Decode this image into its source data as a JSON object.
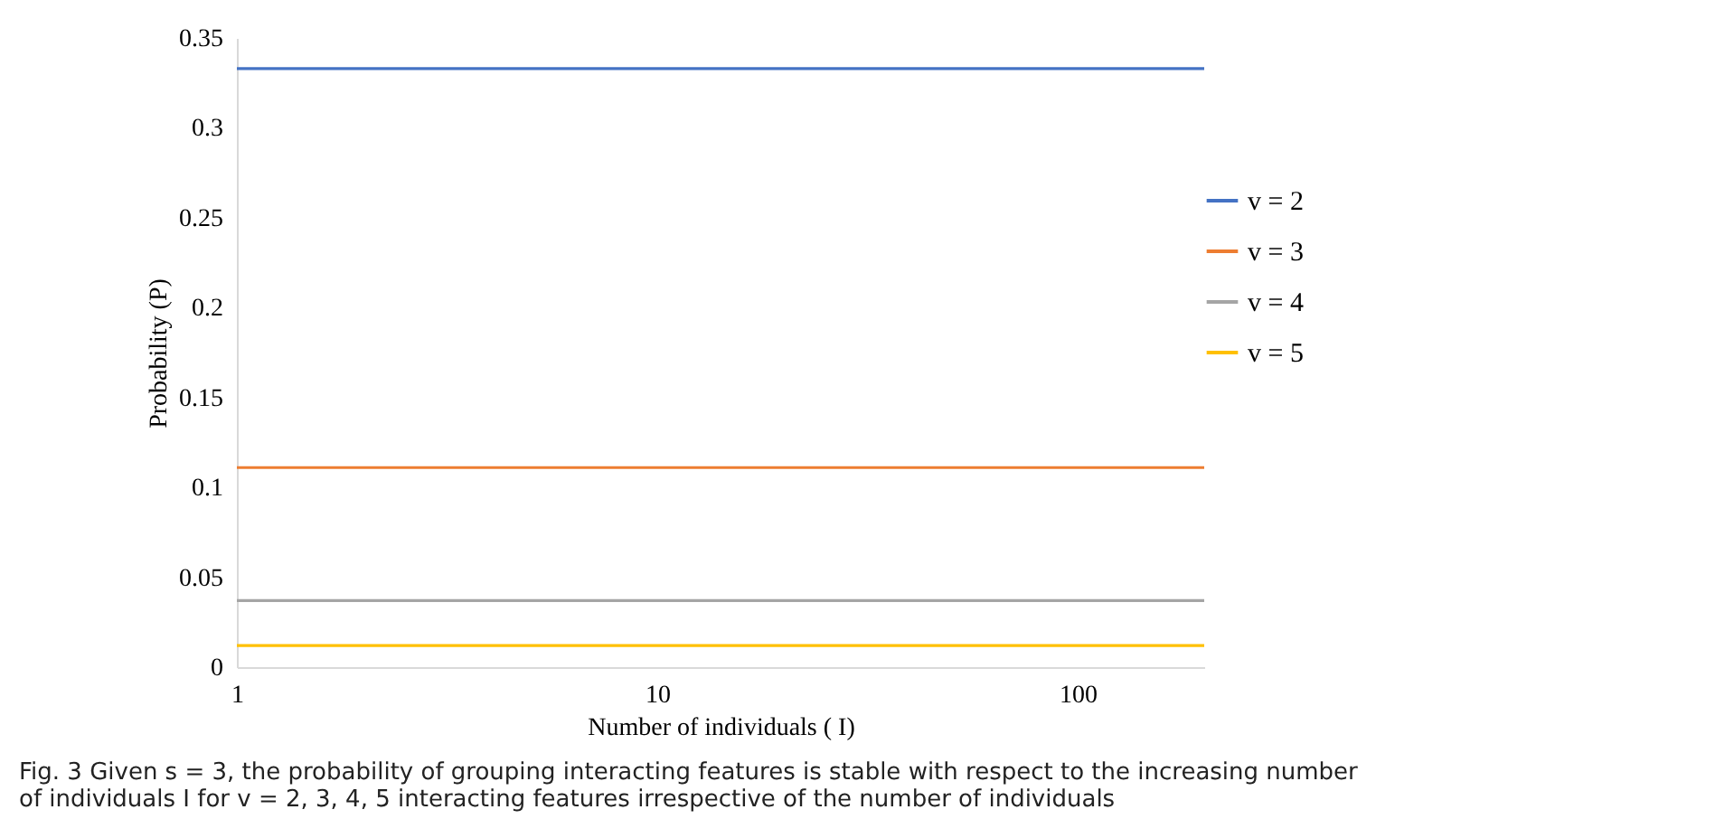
{
  "chart_data": {
    "type": "line",
    "xlabel": "Number of individuals ( I)",
    "ylabel": "Probability (P)",
    "x": [
      1,
      200
    ],
    "xlim": [
      1,
      200
    ],
    "xticks": [
      1,
      10,
      100
    ],
    "log": "x",
    "ylim": [
      0,
      0.35
    ],
    "yticks": [
      0,
      0.05,
      0.1,
      0.15,
      0.2,
      0.25,
      0.3,
      0.35
    ],
    "series": [
      {
        "name": "v = 2",
        "color": "#4472c4",
        "values": [
          0.333,
          0.333
        ]
      },
      {
        "name": "v = 3",
        "color": "#ed7d31",
        "values": [
          0.111,
          0.111
        ]
      },
      {
        "name": "v = 4",
        "color": "#a5a5a5",
        "values": [
          0.037,
          0.037
        ]
      },
      {
        "name": "v = 5",
        "color": "#ffc000",
        "values": [
          0.012,
          0.012
        ]
      }
    ],
    "grid": false,
    "legend": "right",
    "marker": "none",
    "line_style": "solid",
    "annotations": [
      "Fig. 3 Given s = 3, the probability of grouping interacting features is stable with respect to the increasing number of individuals I for v = 2, 3, 4, 5 interacting features irrespective of the number of individuals"
    ]
  }
}
